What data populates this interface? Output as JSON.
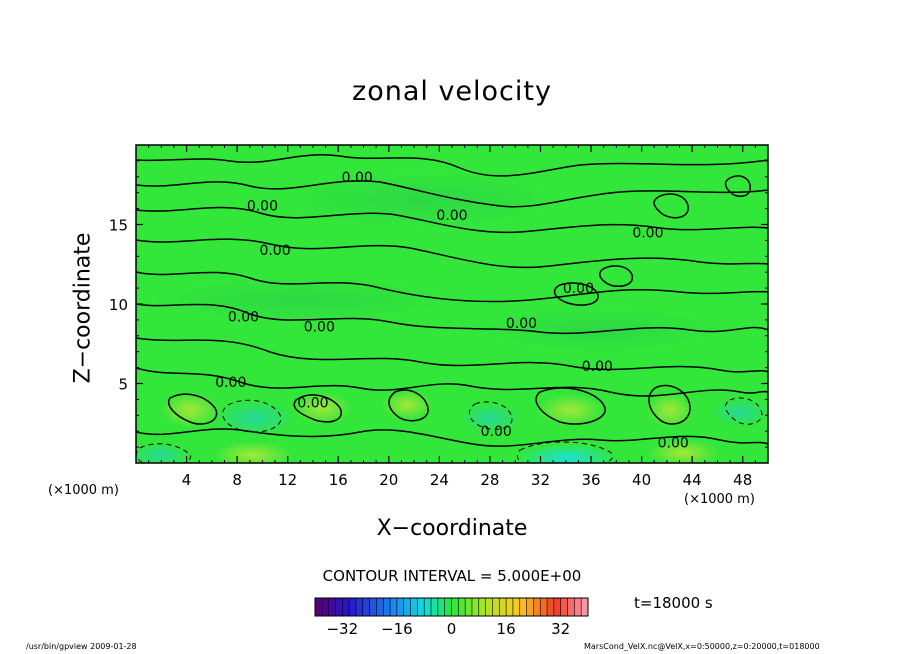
{
  "chart_data": {
    "type": "heatmap",
    "title": "zonal velocity",
    "xlabel": "X−coordinate",
    "ylabel": "Z−coordinate",
    "x_unit": "(×1000 m)",
    "xlim": [
      0,
      50
    ],
    "ylim": [
      0,
      20
    ],
    "x_ticks": [
      4,
      8,
      12,
      16,
      20,
      24,
      28,
      32,
      36,
      40,
      44,
      48
    ],
    "y_ticks": [
      5,
      10,
      15
    ],
    "contour_label": "0.00",
    "contour_labels": [
      {
        "x": 17.5,
        "y": 18.0
      },
      {
        "x": 10.0,
        "y": 16.2
      },
      {
        "x": 25.0,
        "y": 15.6
      },
      {
        "x": 40.5,
        "y": 14.5
      },
      {
        "x": 11.0,
        "y": 13.4
      },
      {
        "x": 35.0,
        "y": 11.0
      },
      {
        "x": 8.5,
        "y": 9.2
      },
      {
        "x": 14.5,
        "y": 8.6
      },
      {
        "x": 30.5,
        "y": 8.8
      },
      {
        "x": 36.5,
        "y": 6.1
      },
      {
        "x": 7.5,
        "y": 5.1
      },
      {
        "x": 14.0,
        "y": 3.8
      },
      {
        "x": 28.5,
        "y": 2.0
      },
      {
        "x": 42.5,
        "y": 1.3
      }
    ],
    "colorbar": {
      "range": [
        -40,
        40
      ],
      "tick_values": [
        -32,
        -16,
        0,
        16,
        32
      ],
      "tick_labels": [
        "−32",
        "−16",
        "0",
        "16",
        "32"
      ]
    },
    "contour_interval": "CONTOUR INTERVAL = 5.000E+00",
    "time": "t=18000 s",
    "colors": {
      "background_field": "#33e63a",
      "contour": "#000000"
    }
  },
  "footer": {
    "left": "/usr/bin/gpview  2009-01-28",
    "right": "MarsCond_VelX.nc@VelX,x=0:50000,z=0:20000,t=018000"
  }
}
